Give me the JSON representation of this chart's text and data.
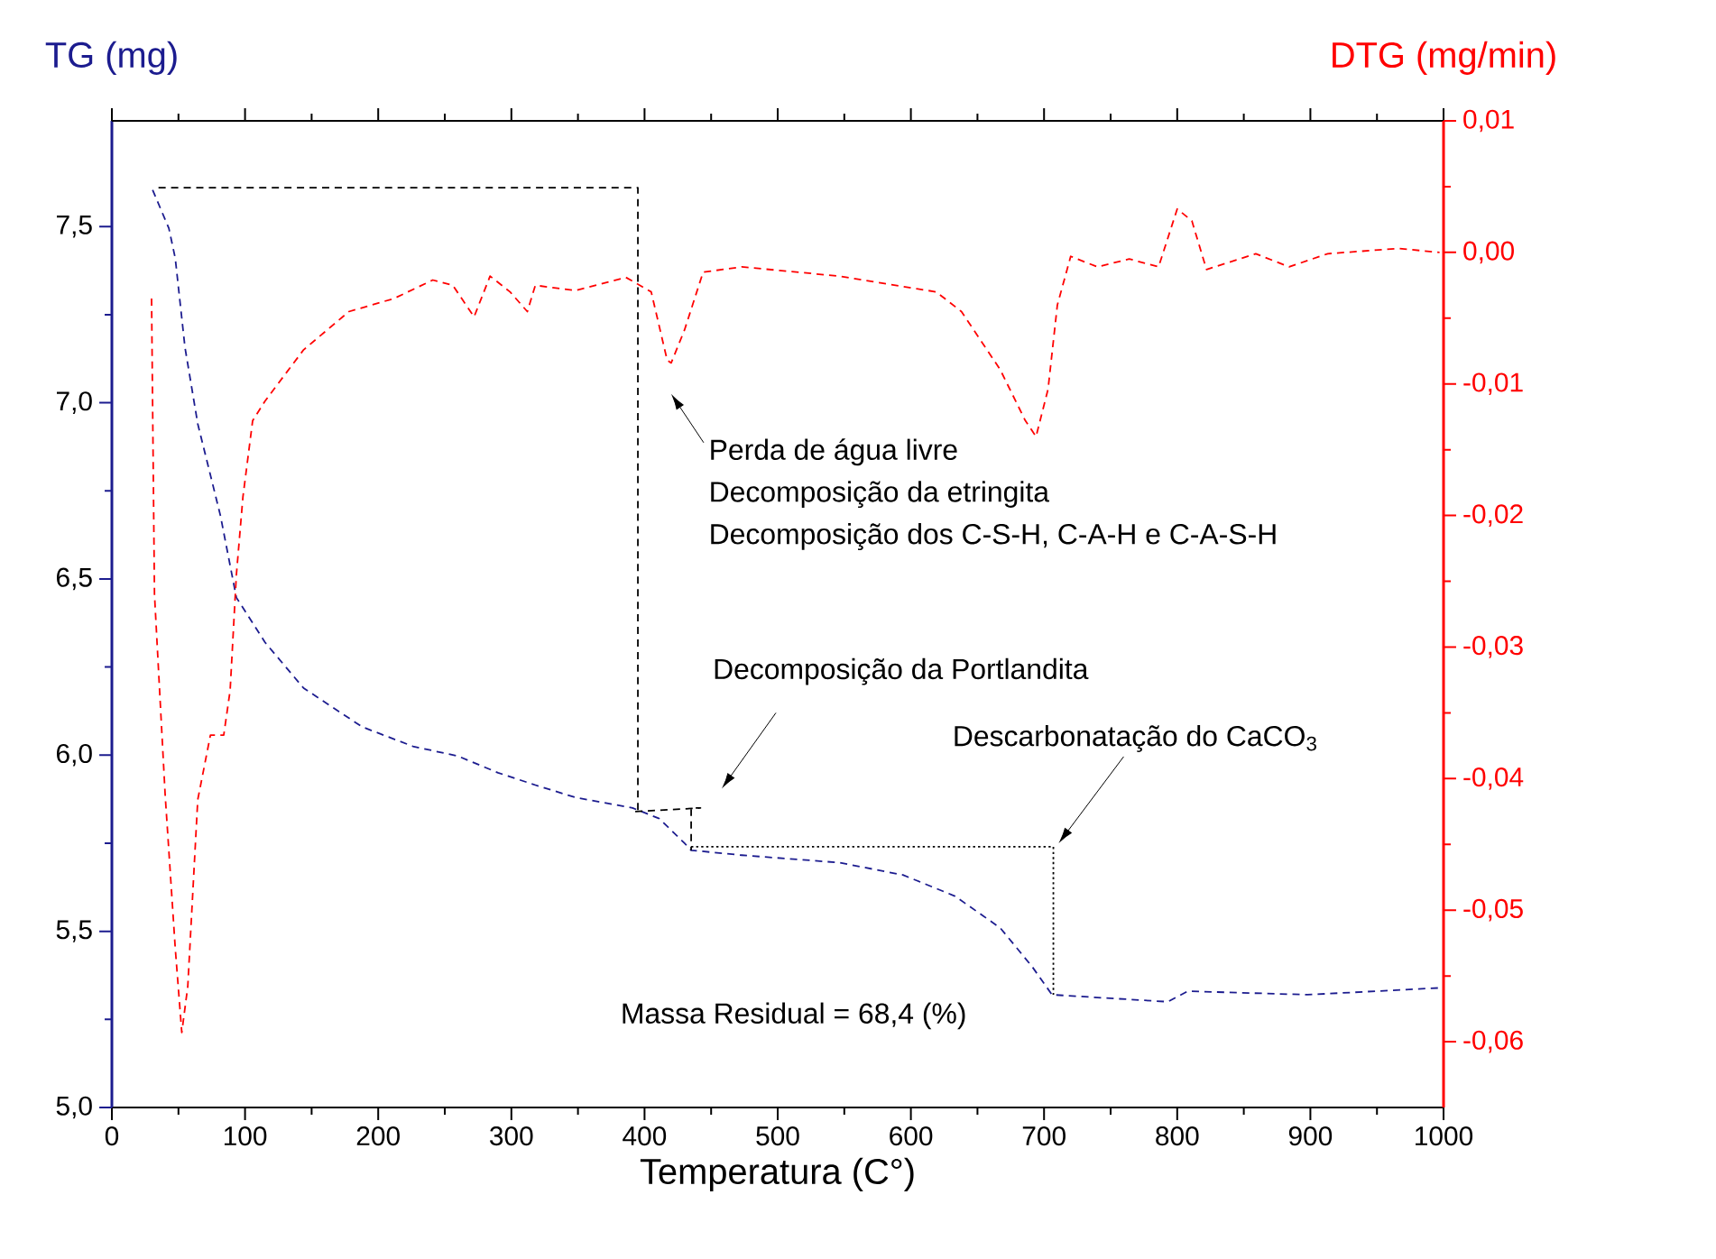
{
  "chart_data": {
    "type": "line",
    "xlabel": "Temperatura (C°)",
    "ylabel": "TG (mg)",
    "y2label": "DTG (mg/min)",
    "xlim": [
      0,
      1000
    ],
    "xticks": [
      0,
      100,
      200,
      300,
      400,
      500,
      600,
      700,
      800,
      900,
      1000
    ],
    "ylim": [
      5,
      7.8
    ],
    "yticks": [
      {
        "value": 5,
        "label": "5,0"
      },
      {
        "value": 5.5,
        "label": "5,5"
      },
      {
        "value": 6,
        "label": "6,0"
      },
      {
        "value": 6.5,
        "label": "6,5"
      },
      {
        "value": 7,
        "label": "7,0"
      },
      {
        "value": 7.5,
        "label": "7,5"
      }
    ],
    "y2lim": [
      -0.065,
      0.01
    ],
    "y2ticks": [
      {
        "value": -0.06,
        "label": "-0,06"
      },
      {
        "value": -0.05,
        "label": "-0,05"
      },
      {
        "value": -0.04,
        "label": "-0,04"
      },
      {
        "value": -0.03,
        "label": "-0,03"
      },
      {
        "value": -0.02,
        "label": "-0,02"
      },
      {
        "value": -0.01,
        "label": "-0,01"
      },
      {
        "value": 0,
        "label": "0,00"
      },
      {
        "value": 0.01,
        "label": "0,01"
      }
    ],
    "marker": "none",
    "line_style": "dashed",
    "series": [
      {
        "color": "#1c1c8f",
        "x": [
          30.6,
          42.8,
          47.6,
          54.9,
          64.5,
          81.5,
          93.5,
          115,
          144,
          188,
          226,
          260,
          290,
          318,
          348,
          391,
          411,
          430,
          435,
          473,
          546,
          594,
          633,
          667,
          691,
          706,
          793,
          808,
          898,
          1000
        ],
        "values": [
          7.604,
          7.495,
          7.41,
          7.157,
          6.94,
          6.68,
          6.447,
          6.32,
          6.19,
          6.08,
          6.025,
          5.997,
          5.95,
          5.915,
          5.88,
          5.85,
          5.82,
          5.75,
          5.73,
          5.716,
          5.695,
          5.66,
          5.6,
          5.51,
          5.4,
          5.32,
          5.3,
          5.33,
          5.32,
          5.34
        ]
      },
      {
        "color": "#ff0000",
        "axis": "y2",
        "x": [
          29.8,
          32,
          40,
          47.6,
          52.5,
          57,
          64.5,
          74,
          84,
          88.8,
          93.5,
          98.4,
          105.7,
          115,
          144,
          178,
          212,
          241,
          256,
          272,
          284,
          299,
          312,
          318,
          348,
          386,
          405,
          417,
          420,
          430,
          444,
          473,
          546,
          619,
          638,
          667,
          686,
          694,
          703,
          710,
          720,
          740,
          764,
          786,
          800,
          811,
          822,
          859,
          884,
          913,
          966,
          997
        ],
        "values": [
          -0.0035,
          -0.026,
          -0.0412,
          -0.0529,
          -0.0593,
          -0.0558,
          -0.0416,
          -0.0367,
          -0.0367,
          -0.0333,
          -0.0245,
          -0.0186,
          -0.0128,
          -0.0113,
          -0.0074,
          -0.0045,
          -0.0035,
          -0.0021,
          -0.0025,
          -0.0049,
          -0.0018,
          -0.003,
          -0.0045,
          -0.0025,
          -0.0029,
          -0.0019,
          -0.003,
          -0.0082,
          -0.0084,
          -0.0059,
          -0.0015,
          -0.0011,
          -0.0018,
          -0.003,
          -0.0045,
          -0.0089,
          -0.0128,
          -0.014,
          -0.0104,
          -0.004,
          -0.0003,
          -0.0011,
          -0.0005,
          -0.0011,
          0.0033,
          0.0024,
          -0.0013,
          -0.0001,
          -0.0011,
          -0.0001,
          0.0003,
          0.0
        ]
      },
      {
        "color": "#000000",
        "x": [
          35,
          395,
          395
        ],
        "values": [
          7.61,
          7.61,
          5.84
        ]
      },
      {
        "color": "#000000",
        "x": [
          393,
          442,
          435,
          435
        ],
        "values": [
          5.84,
          5.85,
          5.85,
          5.73
        ]
      },
      {
        "color": "#000000",
        "line_style": "dotted",
        "x": [
          435,
          707,
          707
        ],
        "values": [
          5.74,
          5.74,
          5.32
        ]
      }
    ],
    "annotations": [
      "Perda de água livre",
      "Decomposição da etringita",
      "Decomposição dos C-S-H, C-A-H e C-A-S-H",
      "Decomposição da Portlandita",
      {
        "text": "Descarbonatação do CaCO$_{3}$",
        "x": 711,
        "y": 5.75
      },
      "Massa Residual = 68,4 (%)"
    ]
  }
}
